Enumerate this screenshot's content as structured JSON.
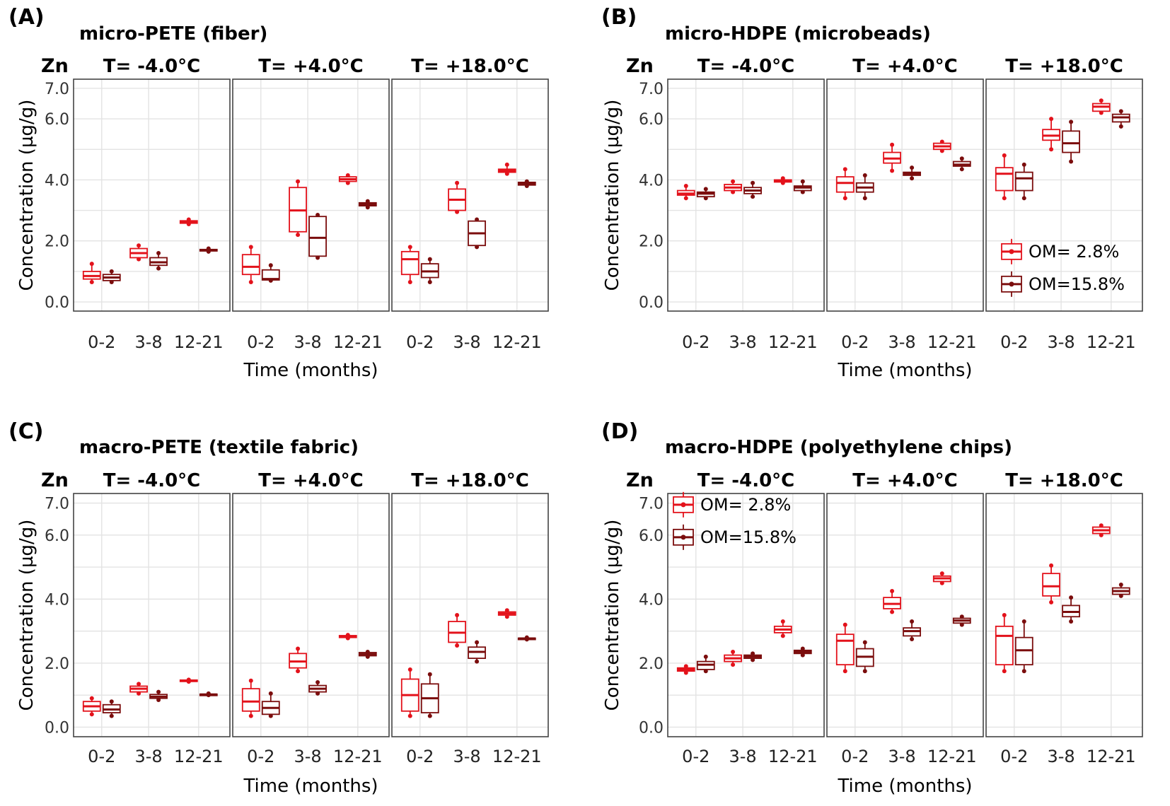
{
  "colors": {
    "om_low": "#e3121b",
    "om_high": "#7b0d0d"
  },
  "chart_data": [
    {
      "type": "boxplot",
      "panel": "(A)",
      "title": "micro-PETE (fiber)",
      "metal": "Zn",
      "facets": [
        "T= -4.0°C",
        "T= +4.0°C",
        "T= +18.0°C"
      ],
      "categories": [
        "0-2",
        "3-8",
        "12-21"
      ],
      "xlabel": "Time (months)",
      "ylabel": "Concentration (µg/g)",
      "yticks": [
        "0.0",
        "2.0",
        "4.0",
        "6.0",
        "7.0"
      ],
      "ylim": [
        -0.3,
        7.3
      ],
      "legend": null,
      "series": [
        {
          "name": "OM= 2.8%",
          "facets": [
            [
              [
                0.65,
                0.75,
                0.85,
                1.0,
                1.25
              ],
              [
                1.4,
                1.45,
                1.6,
                1.75,
                1.85
              ],
              [
                2.55,
                2.58,
                2.62,
                2.66,
                2.7
              ]
            ],
            [
              [
                0.65,
                0.9,
                1.15,
                1.55,
                1.8
              ],
              [
                2.2,
                2.3,
                3.0,
                3.75,
                3.95
              ],
              [
                3.9,
                3.95,
                4.02,
                4.1,
                4.15
              ]
            ],
            [
              [
                0.65,
                0.9,
                1.4,
                1.65,
                1.8
              ],
              [
                2.95,
                3.0,
                3.35,
                3.7,
                3.9
              ],
              [
                4.2,
                4.25,
                4.3,
                4.35,
                4.5
              ]
            ]
          ]
        },
        {
          "name": "OM=15.8%",
          "facets": [
            [
              [
                0.65,
                0.7,
                0.8,
                0.9,
                1.0
              ],
              [
                1.1,
                1.2,
                1.3,
                1.45,
                1.6
              ],
              [
                1.65,
                1.67,
                1.7,
                1.72,
                1.75
              ]
            ],
            [
              [
                0.7,
                0.72,
                0.75,
                1.05,
                1.2
              ],
              [
                1.45,
                1.5,
                2.1,
                2.8,
                2.85
              ],
              [
                3.1,
                3.15,
                3.2,
                3.25,
                3.3
              ]
            ],
            [
              [
                0.65,
                0.8,
                1.0,
                1.25,
                1.4
              ],
              [
                1.8,
                1.85,
                2.25,
                2.65,
                2.7
              ],
              [
                3.8,
                3.83,
                3.88,
                3.92,
                3.95
              ]
            ]
          ]
        }
      ]
    },
    {
      "type": "boxplot",
      "panel": "(B)",
      "title": "micro-HDPE (microbeads)",
      "metal": "Zn",
      "facets": [
        "T= -4.0°C",
        "T= +4.0°C",
        "T= +18.0°C"
      ],
      "categories": [
        "0-2",
        "3-8",
        "12-21"
      ],
      "xlabel": "Time (months)",
      "ylabel": "Concentration (µg/g)",
      "yticks": [
        "0.0",
        "2.0",
        "4.0",
        "6.0",
        "7.0"
      ],
      "ylim": [
        -0.3,
        7.3
      ],
      "legend": {
        "position": "bottom-right",
        "facet": 2,
        "entries": [
          "OM= 2.8%",
          "OM=15.8%"
        ]
      },
      "series": [
        {
          "name": "OM= 2.8%",
          "facets": [
            [
              [
                3.4,
                3.5,
                3.55,
                3.65,
                3.8
              ],
              [
                3.6,
                3.65,
                3.75,
                3.85,
                3.95
              ],
              [
                3.9,
                3.93,
                3.97,
                4.0,
                4.05
              ]
            ],
            [
              [
                3.4,
                3.6,
                3.9,
                4.1,
                4.35
              ],
              [
                4.3,
                4.55,
                4.7,
                4.9,
                5.15
              ],
              [
                4.95,
                5.0,
                5.1,
                5.2,
                5.25
              ]
            ],
            [
              [
                3.4,
                3.65,
                4.2,
                4.4,
                4.8
              ],
              [
                5.0,
                5.3,
                5.45,
                5.65,
                6.0
              ],
              [
                6.2,
                6.25,
                6.4,
                6.5,
                6.6
              ]
            ]
          ]
        },
        {
          "name": "OM=15.8%",
          "facets": [
            [
              [
                3.4,
                3.45,
                3.55,
                3.6,
                3.7
              ],
              [
                3.45,
                3.55,
                3.65,
                3.75,
                3.9
              ],
              [
                3.6,
                3.65,
                3.75,
                3.8,
                3.95
              ]
            ],
            [
              [
                3.4,
                3.6,
                3.75,
                3.9,
                4.15
              ],
              [
                4.05,
                4.15,
                4.2,
                4.25,
                4.4
              ],
              [
                4.35,
                4.45,
                4.5,
                4.6,
                4.7
              ]
            ],
            [
              [
                3.4,
                3.65,
                4.05,
                4.25,
                4.5
              ],
              [
                4.6,
                4.9,
                5.2,
                5.6,
                5.9
              ],
              [
                5.75,
                5.9,
                6.05,
                6.15,
                6.25
              ]
            ]
          ]
        }
      ]
    },
    {
      "type": "boxplot",
      "panel": "(C)",
      "title": "macro-PETE (textile fabric)",
      "metal": "Zn",
      "facets": [
        "T= -4.0°C",
        "T= +4.0°C",
        "T= +18.0°C"
      ],
      "categories": [
        "0-2",
        "3-8",
        "12-21"
      ],
      "xlabel": "Time (months)",
      "ylabel": "Concentration (µg/g)",
      "yticks": [
        "0.0",
        "2.0",
        "4.0",
        "6.0",
        "7.0"
      ],
      "ylim": [
        -0.3,
        7.3
      ],
      "legend": null,
      "series": [
        {
          "name": "OM= 2.8%",
          "facets": [
            [
              [
                0.4,
                0.5,
                0.65,
                0.8,
                0.9
              ],
              [
                1.05,
                1.1,
                1.2,
                1.28,
                1.35
              ],
              [
                1.42,
                1.43,
                1.45,
                1.47,
                1.48
              ]
            ],
            [
              [
                0.35,
                0.5,
                0.8,
                1.2,
                1.45
              ],
              [
                1.75,
                1.85,
                2.05,
                2.3,
                2.45
              ],
              [
                2.78,
                2.8,
                2.83,
                2.86,
                2.88
              ]
            ],
            [
              [
                0.35,
                0.5,
                1.0,
                1.5,
                1.8
              ],
              [
                2.55,
                2.65,
                2.95,
                3.3,
                3.5
              ],
              [
                3.45,
                3.5,
                3.55,
                3.6,
                3.65
              ]
            ]
          ]
        },
        {
          "name": "OM=15.8%",
          "facets": [
            [
              [
                0.35,
                0.45,
                0.55,
                0.7,
                0.8
              ],
              [
                0.85,
                0.9,
                0.95,
                1.02,
                1.1
              ],
              [
                1.0,
                1.01,
                1.02,
                1.03,
                1.05
              ]
            ],
            [
              [
                0.35,
                0.4,
                0.6,
                0.8,
                1.05
              ],
              [
                1.05,
                1.1,
                1.2,
                1.3,
                1.4
              ],
              [
                2.2,
                2.23,
                2.28,
                2.33,
                2.35
              ]
            ],
            [
              [
                0.35,
                0.45,
                0.9,
                1.35,
                1.65
              ],
              [
                2.05,
                2.15,
                2.35,
                2.5,
                2.65
              ],
              [
                2.74,
                2.75,
                2.77,
                2.78,
                2.8
              ]
            ]
          ]
        }
      ]
    },
    {
      "type": "boxplot",
      "panel": "(D)",
      "title": "macro-HDPE (polyethylene chips)",
      "metal": "Zn",
      "facets": [
        "T= -4.0°C",
        "T= +4.0°C",
        "T= +18.0°C"
      ],
      "categories": [
        "0-2",
        "3-8",
        "12-21"
      ],
      "xlabel": "Time (months)",
      "ylabel": "Concentration (µg/g)",
      "yticks": [
        "0.0",
        "2.0",
        "4.0",
        "6.0",
        "7.0"
      ],
      "ylim": [
        -0.3,
        7.3
      ],
      "legend": {
        "position": "top-left",
        "facet": 0,
        "entries": [
          "OM= 2.8%",
          "OM=15.8%"
        ]
      },
      "series": [
        {
          "name": "OM= 2.8%",
          "facets": [
            [
              [
                1.7,
                1.75,
                1.8,
                1.85,
                1.9
              ],
              [
                1.95,
                2.05,
                2.15,
                2.25,
                2.35
              ],
              [
                2.85,
                2.95,
                3.05,
                3.15,
                3.3
              ]
            ],
            [
              [
                1.75,
                1.95,
                2.7,
                2.9,
                3.2
              ],
              [
                3.6,
                3.7,
                3.85,
                4.05,
                4.25
              ],
              [
                4.5,
                4.55,
                4.65,
                4.72,
                4.8
              ]
            ],
            [
              [
                1.75,
                1.95,
                2.85,
                3.15,
                3.5
              ],
              [
                3.9,
                4.1,
                4.4,
                4.8,
                5.05
              ],
              [
                6.0,
                6.05,
                6.15,
                6.25,
                6.3
              ]
            ]
          ]
        },
        {
          "name": "OM=15.8%",
          "facets": [
            [
              [
                1.75,
                1.8,
                1.95,
                2.05,
                2.2
              ],
              [
                2.1,
                2.15,
                2.2,
                2.25,
                2.3
              ],
              [
                2.25,
                2.3,
                2.35,
                2.4,
                2.45
              ]
            ],
            [
              [
                1.75,
                1.9,
                2.2,
                2.45,
                2.65
              ],
              [
                2.75,
                2.85,
                3.0,
                3.1,
                3.3
              ],
              [
                3.2,
                3.25,
                3.33,
                3.4,
                3.45
              ]
            ],
            [
              [
                1.75,
                1.95,
                2.4,
                2.8,
                3.3
              ],
              [
                3.3,
                3.45,
                3.6,
                3.8,
                4.05
              ],
              [
                4.1,
                4.15,
                4.25,
                4.35,
                4.45
              ]
            ]
          ]
        }
      ]
    }
  ]
}
